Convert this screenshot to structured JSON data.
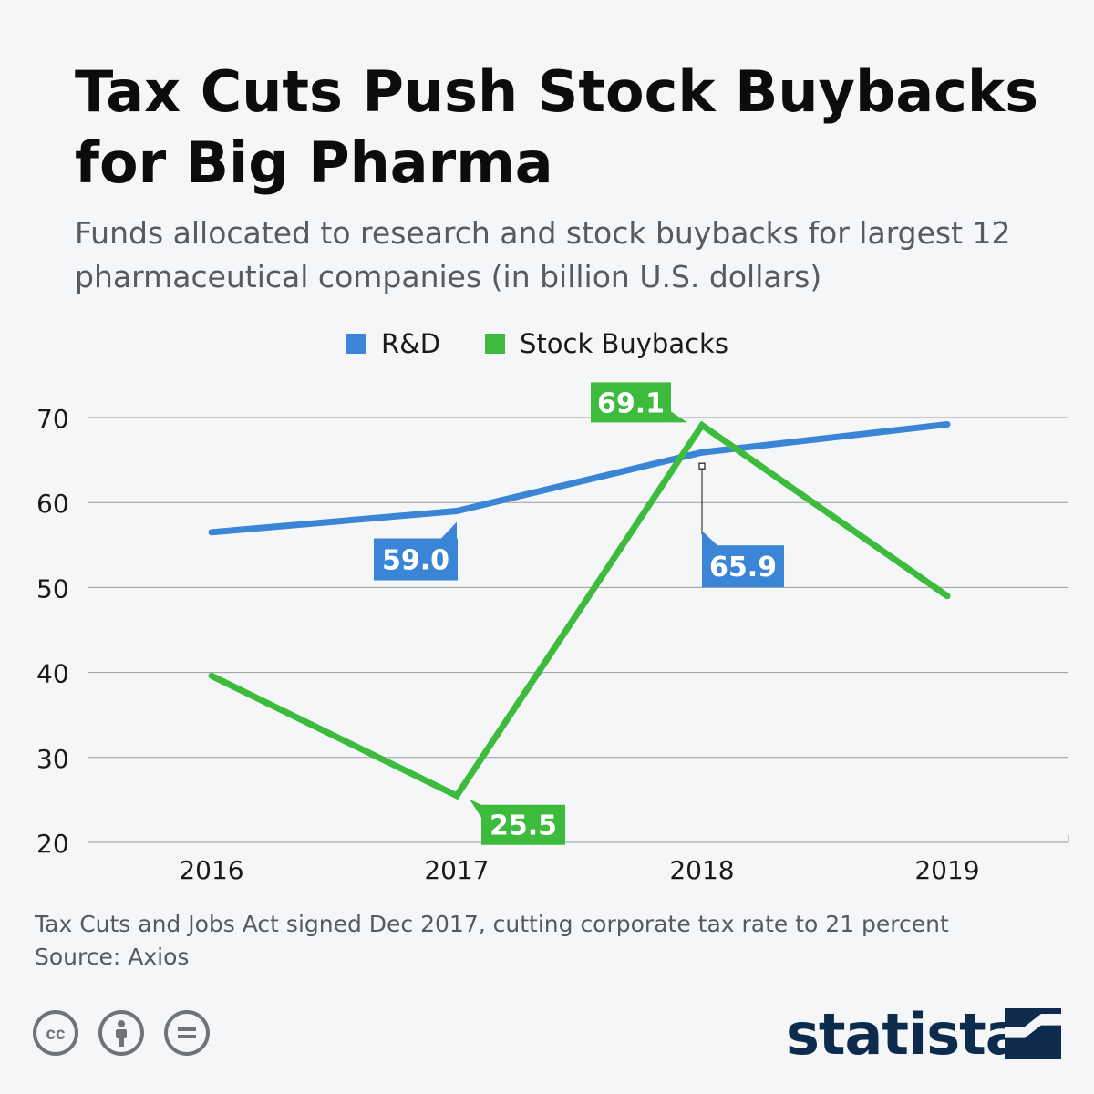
{
  "header": {
    "title": "Tax Cuts Push Stock Buybacks for Big Pharma",
    "subtitle": "Funds allocated to research and stock buybacks for largest 12 pharmaceutical companies (in billion U.S. dollars)"
  },
  "colors": {
    "rd": "#3a85d6",
    "buybacks": "#3dbb3d",
    "grid": "#9a9a9a",
    "logo": "#0c2b4d"
  },
  "chart_data": {
    "type": "line",
    "title": "Tax Cuts Push Stock Buybacks for Big Pharma",
    "subtitle": "Funds allocated to research and stock buybacks for largest 12 pharmaceutical companies (in billion U.S. dollars)",
    "categories": [
      "2016",
      "2017",
      "2018",
      "2019"
    ],
    "series": [
      {
        "name": "R&D",
        "color": "#3a85d6",
        "values": [
          56.5,
          59.0,
          65.9,
          69.2
        ],
        "labels": [
          null,
          "59.0",
          "65.9",
          null
        ]
      },
      {
        "name": "Stock Buybacks",
        "color": "#3dbb3d",
        "values": [
          39.6,
          25.5,
          69.1,
          49.0
        ],
        "labels": [
          null,
          "25.5",
          "69.1",
          null
        ]
      }
    ],
    "yticks": [
      20,
      30,
      40,
      50,
      60,
      70
    ],
    "ylim": [
      20,
      70
    ],
    "grid": true,
    "legend_position": "top-center",
    "xlabel": "",
    "ylabel": ""
  },
  "footer": {
    "note": "Tax Cuts and Jobs Act signed Dec 2017, cutting corporate tax rate to 21 percent",
    "source": "Source: Axios",
    "license_icons": [
      "cc-icon",
      "attribution-icon",
      "no-derivatives-icon"
    ],
    "logo": "statista"
  }
}
